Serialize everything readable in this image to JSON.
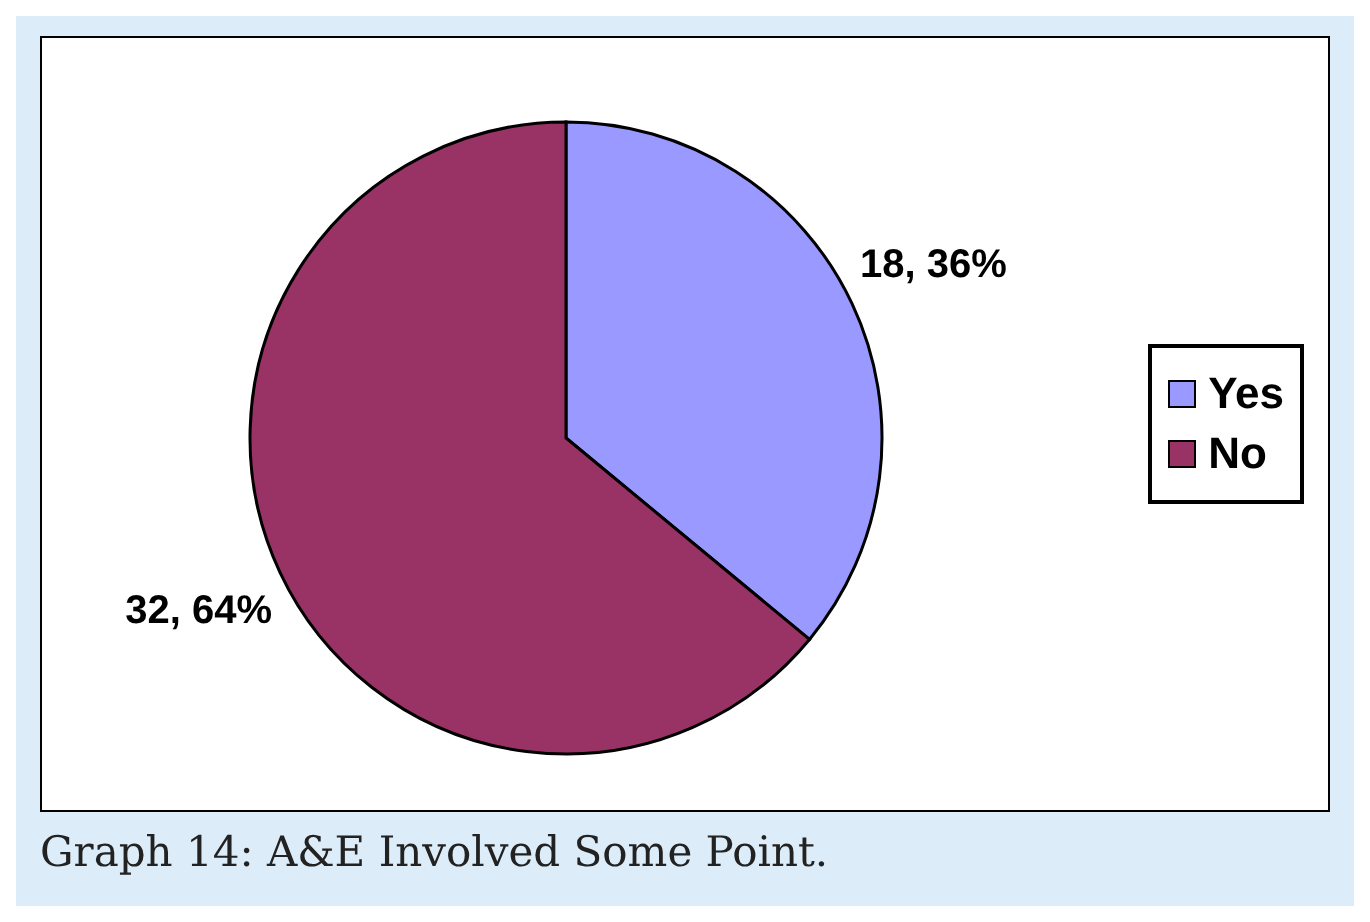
{
  "chart_data": {
    "type": "pie",
    "categories": [
      "Yes",
      "No"
    ],
    "values": [
      18,
      32
    ],
    "colors": [
      "#9999ff",
      "#993366"
    ],
    "value_labels": [
      "18, 36%",
      "32, 64%"
    ],
    "legend": "right",
    "annotations": [
      "Graph 14: A&E Involved Some Point."
    ]
  }
}
